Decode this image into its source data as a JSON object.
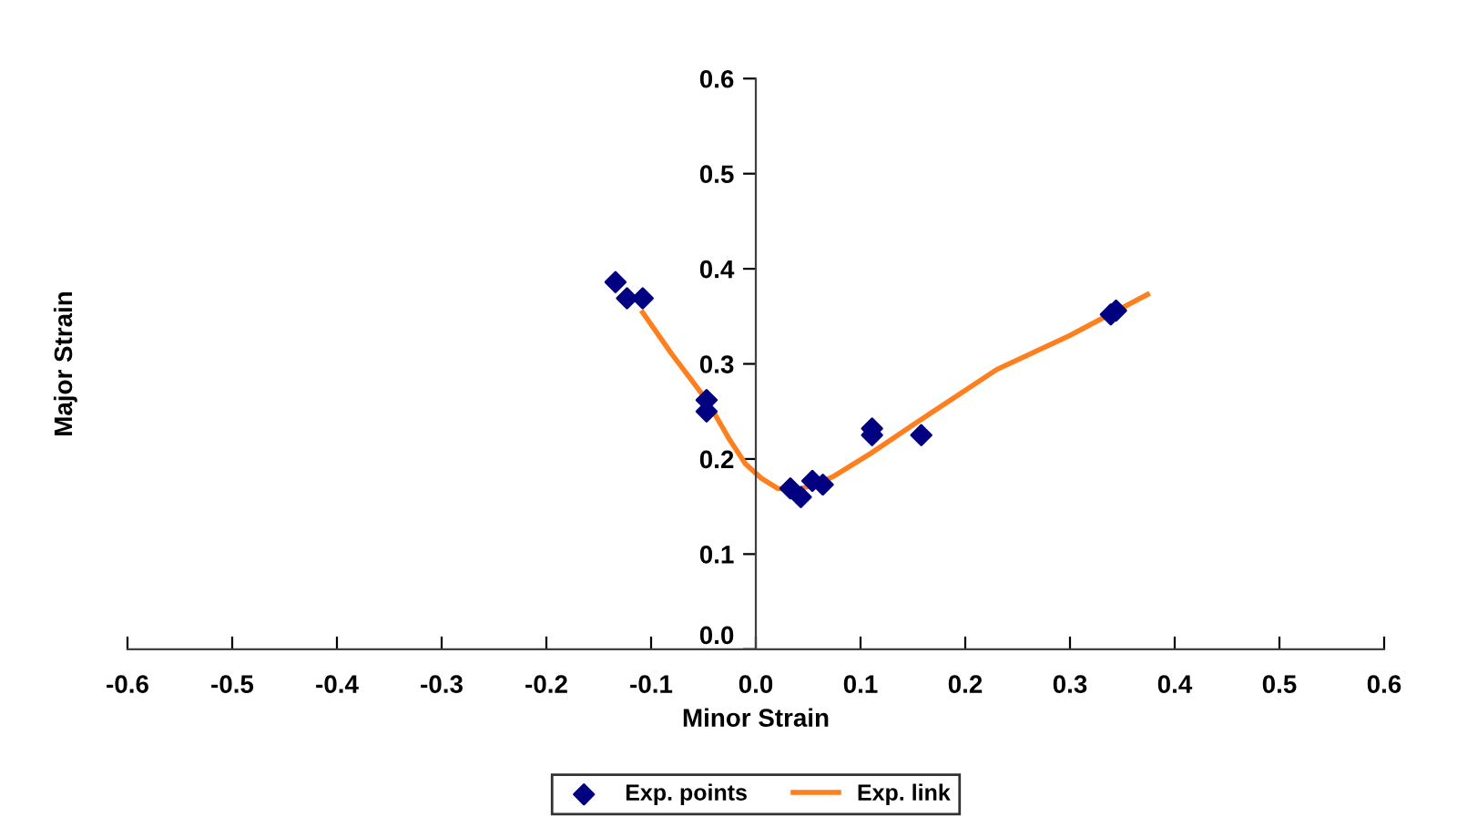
{
  "chart_data": {
    "type": "scatter",
    "xlabel": "Minor Strain",
    "ylabel": "Major Strain",
    "xlim": [
      -0.6,
      0.6
    ],
    "ylim": [
      0,
      0.6
    ],
    "xticks": [
      -0.6,
      -0.5,
      -0.4,
      -0.3,
      -0.2,
      -0.1,
      {
        "value": 0,
        "label": "0.0"
      },
      0.1,
      0.2,
      0.3,
      0.4,
      0.5,
      0.6
    ],
    "yticks": [
      {
        "value": 0,
        "label": "0.0"
      },
      0.1,
      0.2,
      0.3,
      0.4,
      0.5,
      0.6
    ],
    "grid": false,
    "legend": "bottom",
    "series": [
      {
        "name": "Exp. points",
        "marker": "diamond",
        "color": "#000080",
        "x": [
          -0.134,
          -0.123,
          -0.108,
          -0.047,
          -0.047,
          0.033,
          0.043,
          0.054,
          0.064,
          0.111,
          0.111,
          0.158,
          0.339,
          0.344
        ],
        "values": [
          0.386,
          0.369,
          0.369,
          0.262,
          0.25,
          0.169,
          0.16,
          0.177,
          0.173,
          0.232,
          0.225,
          0.225,
          0.352,
          0.356
        ]
      },
      {
        "name": "Exp. link",
        "type": "line",
        "marker": "none",
        "color": "#ff7f1e",
        "x": [
          -0.108,
          -0.08,
          -0.047,
          -0.026,
          -0.01,
          0.005,
          0.021,
          0.04,
          0.056,
          0.073,
          0.11,
          0.153,
          0.23,
          0.3,
          0.374
        ],
        "values": [
          0.354,
          0.31,
          0.262,
          0.222,
          0.195,
          0.18,
          0.169,
          0.168,
          0.173,
          0.181,
          0.206,
          0.238,
          0.294,
          0.33,
          0.373
        ]
      }
    ]
  }
}
